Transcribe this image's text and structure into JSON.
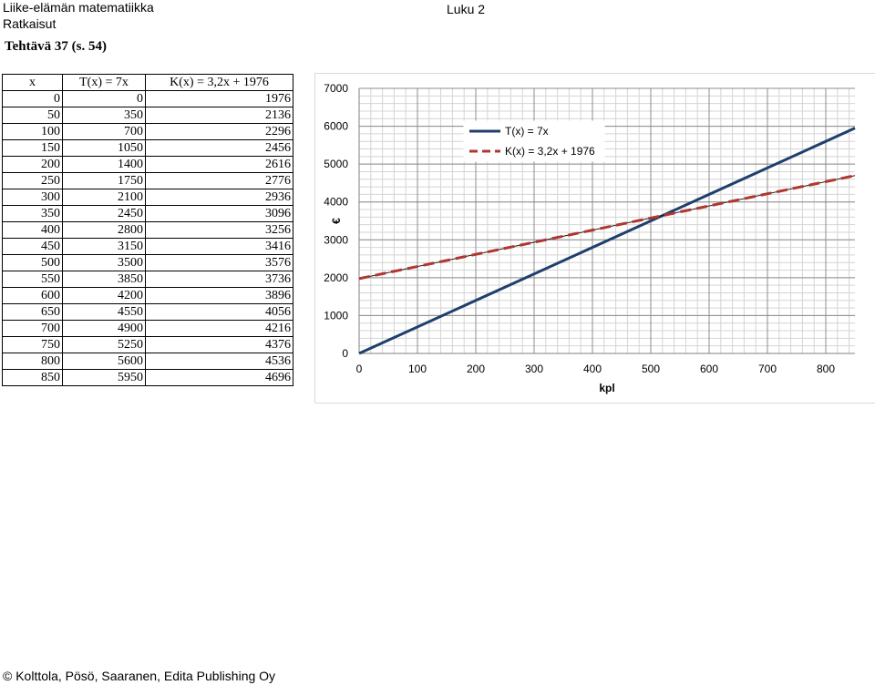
{
  "header": {
    "title": "Liike-elämän matematiikka",
    "subtitle": "Ratkaisut",
    "chapter": "Luku 2"
  },
  "task_title": "Tehtävä 37 (s. 54)",
  "table": {
    "headers": [
      "x",
      "T(x) = 7x",
      "K(x) = 3,2x + 1976"
    ],
    "rows": [
      [
        "0",
        "0",
        "1976"
      ],
      [
        "50",
        "350",
        "2136"
      ],
      [
        "100",
        "700",
        "2296"
      ],
      [
        "150",
        "1050",
        "2456"
      ],
      [
        "200",
        "1400",
        "2616"
      ],
      [
        "250",
        "1750",
        "2776"
      ],
      [
        "300",
        "2100",
        "2936"
      ],
      [
        "350",
        "2450",
        "3096"
      ],
      [
        "400",
        "2800",
        "3256"
      ],
      [
        "450",
        "3150",
        "3416"
      ],
      [
        "500",
        "3500",
        "3576"
      ],
      [
        "550",
        "3850",
        "3736"
      ],
      [
        "600",
        "4200",
        "3896"
      ],
      [
        "650",
        "4550",
        "4056"
      ],
      [
        "700",
        "4900",
        "4216"
      ],
      [
        "750",
        "5250",
        "4376"
      ],
      [
        "800",
        "5600",
        "4536"
      ],
      [
        "850",
        "5950",
        "4696"
      ]
    ]
  },
  "chart_data": {
    "type": "line",
    "xlabel": "kpl",
    "ylabel": "€",
    "xlim": [
      0,
      850
    ],
    "ylim": [
      0,
      7000
    ],
    "x_ticks": [
      "0",
      "100",
      "200",
      "300",
      "400",
      "500",
      "600",
      "700",
      "800"
    ],
    "y_ticks": [
      "0",
      "1000",
      "2000",
      "3000",
      "4000",
      "5000",
      "6000",
      "7000"
    ],
    "grid": true,
    "legend_position": "top-right",
    "series": [
      {
        "name": "T(x) = 7x",
        "x": [
          0,
          850
        ],
        "y": [
          0,
          5950
        ],
        "color": "#1f3f6e",
        "dash": "solid"
      },
      {
        "name": "K(x) = 3,2x + 1976",
        "x": [
          0,
          850
        ],
        "y": [
          1976,
          4696
        ],
        "color": "#b2362f",
        "dash": "dashed"
      }
    ]
  },
  "footer": "© Kolttola, Pösö, Saaranen, Edita Publishing Oy"
}
